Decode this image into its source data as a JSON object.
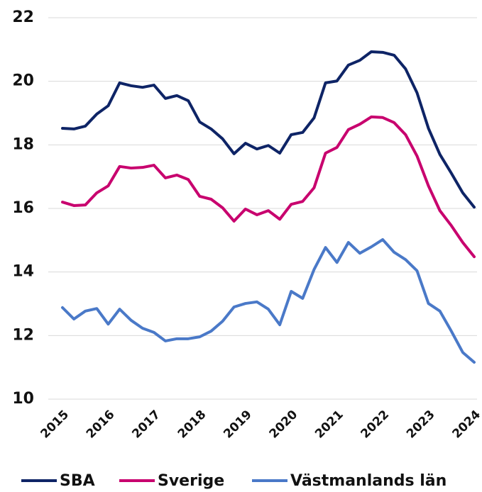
{
  "chart_data": {
    "type": "line",
    "categories": [
      "2015",
      null,
      null,
      null,
      "2016",
      null,
      null,
      null,
      "2017",
      null,
      null,
      null,
      "2018",
      null,
      null,
      null,
      "2019",
      null,
      null,
      null,
      "2020",
      null,
      null,
      null,
      "2021",
      null,
      null,
      null,
      "2022",
      null,
      null,
      null,
      "2023",
      null,
      null,
      null,
      "2024"
    ],
    "series": [
      {
        "name": "SBA",
        "color": "#0e2466",
        "values": [
          18.52,
          18.5,
          18.59,
          18.97,
          19.23,
          19.95,
          19.86,
          19.81,
          19.88,
          19.46,
          19.55,
          19.39,
          18.72,
          18.5,
          18.19,
          17.72,
          18.05,
          17.87,
          17.98,
          17.74,
          18.32,
          18.39,
          18.85,
          19.95,
          20.01,
          20.51,
          20.66,
          20.93,
          20.91,
          20.82,
          20.39,
          19.64,
          18.52,
          17.7,
          17.11,
          16.49,
          16.04
        ]
      },
      {
        "name": "Sverige",
        "color": "#c8006e",
        "values": [
          16.2,
          16.09,
          16.11,
          16.49,
          16.71,
          17.32,
          17.27,
          17.29,
          17.36,
          16.96,
          17.05,
          16.91,
          16.38,
          16.29,
          16.02,
          15.6,
          15.98,
          15.8,
          15.93,
          15.66,
          16.13,
          16.22,
          16.65,
          17.74,
          17.92,
          18.48,
          18.65,
          18.88,
          18.86,
          18.7,
          18.32,
          17.65,
          16.71,
          15.93,
          15.46,
          14.93,
          14.48
        ]
      },
      {
        "name": "Västmanlands län",
        "color": "#4a79c8",
        "values": [
          12.88,
          12.52,
          12.77,
          12.85,
          12.36,
          12.83,
          12.48,
          12.23,
          12.1,
          11.83,
          11.9,
          11.9,
          11.96,
          12.14,
          12.45,
          12.9,
          13.01,
          13.06,
          12.83,
          12.34,
          13.39,
          13.17,
          14.08,
          14.77,
          14.3,
          14.93,
          14.59,
          14.79,
          15.02,
          14.62,
          14.39,
          14.04,
          13.01,
          12.77,
          12.14,
          11.47,
          11.16
        ]
      }
    ],
    "ylim": [
      10,
      22
    ],
    "yticks": [
      10,
      12,
      14,
      16,
      18,
      20,
      22
    ],
    "grid": true,
    "legend": "bottom"
  }
}
